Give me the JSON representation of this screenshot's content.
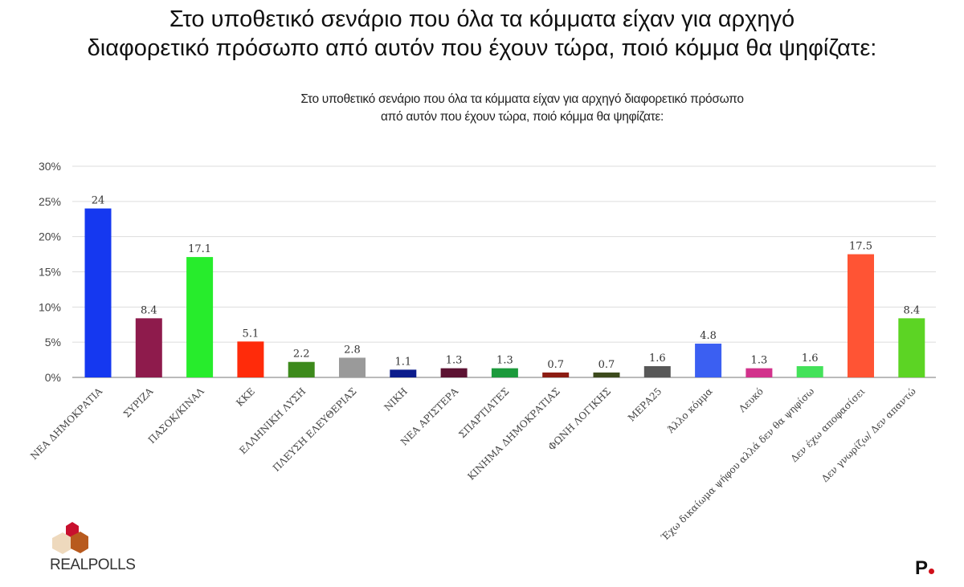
{
  "title_line1": "Στο υποθετικό σενάριο που όλα τα κόμματα είχαν για αρχηγό",
  "title_line2": "διαφορετικό πρόσωπο από αυτόν που έχουν τώρα, ποιό κόμμα θα ψηφίζατε:",
  "logo_text": "REALPOLLS",
  "chart_data": {
    "type": "bar",
    "title": "Στο υποθετικό σενάριο που όλα τα κόμματα είχαν για αρχηγό διαφορετικό πρόσωπο",
    "title_line2": "από αυτόν που έχουν τώρα, ποιό κόμμα θα ψηφίζατε:",
    "categories": [
      "ΝΕΑ ΔΗΜΟΚΡΑΤΙΑ",
      "ΣΥΡΙΖΑ",
      "ΠΑΣΟΚ/ΚΙΝΑΛ",
      "ΚΚΕ",
      "ΕΛΛΗΝΙΚΗ ΛΥΣΗ",
      "ΠΛΕΥΣΗ ΕΛΕΥΘΕΡΙΑΣ",
      "ΝΙΚΗ",
      "ΝΕΑ ΑΡΙΣΤΕΡΑ",
      "ΣΠΑΡΤΙΑΤΕΣ",
      "ΚΙΝΗΜΑ ΔΗΜΟΚΡΑΤΙΑΣ",
      "ΦΩΝΗ ΛΟΓΙΚΗΣ",
      "ΜΕΡΑ25",
      "Άλλο κόμμα",
      "Λευκό",
      "Έχω δικαίωμα ψήφου αλλά δεν θα ψηφίσω",
      "Δεν έχω αποφασίσει",
      "Δεν γνωρίζω/ Δεν απαντώ"
    ],
    "values": [
      24,
      8.4,
      17.1,
      5.1,
      2.2,
      2.8,
      1.1,
      1.3,
      1.3,
      0.7,
      0.7,
      1.6,
      4.8,
      1.3,
      1.6,
      17.5,
      8.4
    ],
    "value_labels": [
      "24",
      "8.4",
      "17.1",
      "5.1",
      "2.2",
      "2.8",
      "1.1",
      "1.3",
      "1.3",
      "0.7",
      "0.7",
      "1.6",
      "4.8",
      "1.3",
      "1.6",
      "17.5",
      "8.4"
    ],
    "colors": [
      "#1538f0",
      "#8e1b4c",
      "#27ec2c",
      "#ff2b0a",
      "#3d8a1c",
      "#9a9a9a",
      "#0c1c8c",
      "#5c1232",
      "#1c9a3c",
      "#8c1c12",
      "#3c4a1c",
      "#585858",
      "#3b5ff2",
      "#d2328c",
      "#44e25a",
      "#ff5434",
      "#5cd424"
    ],
    "ylim": [
      0,
      30
    ],
    "yticks": [
      "0%",
      "5%",
      "10%",
      "15%",
      "20%",
      "25%",
      "30%"
    ],
    "grid": true,
    "xlabel": "",
    "ylabel": ""
  }
}
